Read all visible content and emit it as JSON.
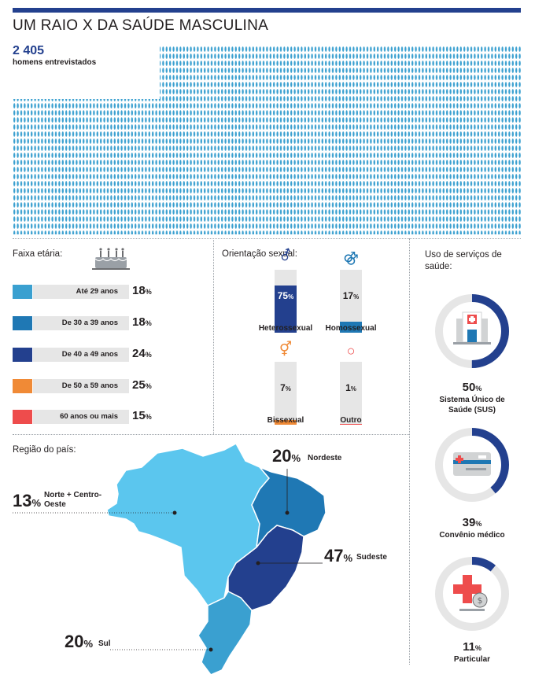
{
  "header": {
    "title": "UM RAIO X DA SAÚDE MASCULINA"
  },
  "sample": {
    "count": "2 405",
    "label": "homens entrevistados"
  },
  "colors": {
    "navy": "#23408e",
    "blue": "#1f78b4",
    "light_blue": "#3aa0d0",
    "sky": "#5bc6ee",
    "orange": "#f08a36",
    "red": "#ee4c4c",
    "grey": "#e6e6e6"
  },
  "chart_data": [
    {
      "type": "bar",
      "title": "Faixa etária:",
      "categories": [
        "Até 29 anos",
        "De 30 a 39 anos",
        "De 40 a 49 anos",
        "De 50 a 59 anos",
        "60 anos ou mais"
      ],
      "values": [
        18,
        18,
        24,
        25,
        15
      ],
      "value_labels": [
        "18",
        "18",
        "24",
        "25",
        "15"
      ],
      "unit": "%",
      "colors": [
        "#3aa0d0",
        "#1f78b4",
        "#23408e",
        "#f08a36",
        "#ee4c4c"
      ]
    },
    {
      "type": "bar",
      "title": "Orientação sexual:",
      "categories": [
        "Heterossexual",
        "Homossexual",
        "Bissexual",
        "Outro"
      ],
      "values": [
        75,
        17,
        7,
        1
      ],
      "value_labels": [
        "75",
        "17",
        "7",
        "1"
      ],
      "unit": "%",
      "symbols": [
        "⚦",
        "⚣",
        "⚥",
        "○"
      ],
      "colors": [
        "#23408e",
        "#1f78b4",
        "#f08a36",
        "#ee4c4c"
      ]
    },
    {
      "type": "pie",
      "title": "Uso de serviços de saúde:",
      "items": [
        {
          "label": "Sistema Único de Saúde (SUS)",
          "value": 50,
          "value_label": "50"
        },
        {
          "label": "Convênio médico",
          "value": 39,
          "value_label": "39"
        },
        {
          "label": "Particular",
          "value": 11,
          "value_label": "11"
        }
      ],
      "unit": "%",
      "color": "#23408e"
    },
    {
      "type": "map",
      "title": "Região do país:",
      "regions": [
        {
          "name": "Nordeste",
          "value": 20,
          "value_label": "20"
        },
        {
          "name": "Norte + Centro-Oeste",
          "value": 13,
          "value_label": "13"
        },
        {
          "name": "Sudeste",
          "value": 47,
          "value_label": "47"
        },
        {
          "name": "Sul",
          "value": 20,
          "value_label": "20"
        }
      ],
      "unit": "%"
    }
  ]
}
